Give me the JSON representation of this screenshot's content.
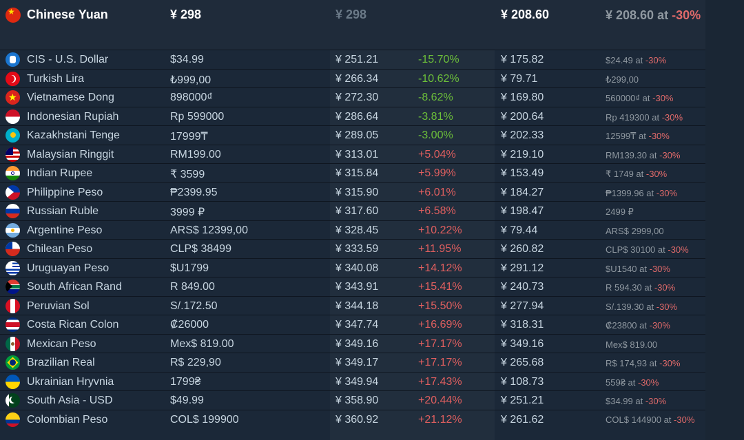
{
  "header": {
    "currency_name": "Chinese Yuan",
    "price": "¥ 298",
    "converted": "¥ 298",
    "sale_price": "¥ 208.60",
    "sale_note_prefix": "¥ 208.60 at",
    "sale_note_pct": "-30%",
    "flag_icon": "china-flag-icon"
  },
  "rows": [
    {
      "name": "CIS - U.S. Dollar",
      "price": "$34.99",
      "converted": "¥ 251.21",
      "diff": "-15.70%",
      "diff_sign": "neg",
      "sale": "¥ 175.82",
      "orig": "$24.49",
      "at": " at ",
      "pct": "-30%",
      "flag": "cis-flag-icon"
    },
    {
      "name": "Turkish Lira",
      "price": "₺999,00",
      "converted": "¥ 266.34",
      "diff": "-10.62%",
      "diff_sign": "neg",
      "sale": "¥ 79.71",
      "orig": "₺299,00",
      "at": "",
      "pct": "",
      "flag": "turkey-flag-icon"
    },
    {
      "name": "Vietnamese Dong",
      "price": "898000₫",
      "converted": "¥ 272.30",
      "diff": "-8.62%",
      "diff_sign": "neg",
      "sale": "¥ 169.80",
      "orig": "560000₫",
      "at": " at ",
      "pct": "-30%",
      "flag": "vietnam-flag-icon"
    },
    {
      "name": "Indonesian Rupiah",
      "price": "Rp 599000",
      "converted": "¥ 286.64",
      "diff": "-3.81%",
      "diff_sign": "neg",
      "sale": "¥ 200.64",
      "orig": "Rp 419300",
      "at": " at ",
      "pct": "-30%",
      "flag": "indonesia-flag-icon"
    },
    {
      "name": "Kazakhstani Tenge",
      "price": "17999₸",
      "converted": "¥ 289.05",
      "diff": "-3.00%",
      "diff_sign": "neg",
      "sale": "¥ 202.33",
      "orig": "12599₸",
      "at": " at ",
      "pct": "-30%",
      "flag": "kazakhstan-flag-icon"
    },
    {
      "name": "Malaysian Ringgit",
      "price": "RM199.00",
      "converted": "¥ 313.01",
      "diff": "+5.04%",
      "diff_sign": "pos",
      "sale": "¥ 219.10",
      "orig": "RM139.30",
      "at": " at ",
      "pct": "-30%",
      "flag": "malaysia-flag-icon"
    },
    {
      "name": "Indian Rupee",
      "price": "₹ 3599",
      "converted": "¥ 315.84",
      "diff": "+5.99%",
      "diff_sign": "pos",
      "sale": "¥ 153.49",
      "orig": "₹ 1749",
      "at": " at ",
      "pct": "-30%",
      "flag": "india-flag-icon"
    },
    {
      "name": "Philippine Peso",
      "price": "₱2399.95",
      "converted": "¥ 315.90",
      "diff": "+6.01%",
      "diff_sign": "pos",
      "sale": "¥ 184.27",
      "orig": "₱1399.96",
      "at": " at ",
      "pct": "-30%",
      "flag": "philippines-flag-icon"
    },
    {
      "name": "Russian Ruble",
      "price": "3999 ₽",
      "converted": "¥ 317.60",
      "diff": "+6.58%",
      "diff_sign": "pos",
      "sale": "¥ 198.47",
      "orig": "2499 ₽",
      "at": "",
      "pct": "",
      "flag": "russia-flag-icon"
    },
    {
      "name": "Argentine Peso",
      "price": "ARS$ 12399,00",
      "converted": "¥ 328.45",
      "diff": "+10.22%",
      "diff_sign": "pos",
      "sale": "¥ 79.44",
      "orig": "ARS$ 2999,00",
      "at": "",
      "pct": "",
      "flag": "argentina-flag-icon"
    },
    {
      "name": "Chilean Peso",
      "price": "CLP$ 38499",
      "converted": "¥ 333.59",
      "diff": "+11.95%",
      "diff_sign": "pos",
      "sale": "¥ 260.82",
      "orig": "CLP$ 30100",
      "at": " at ",
      "pct": "-30%",
      "flag": "chile-flag-icon"
    },
    {
      "name": "Uruguayan Peso",
      "price": "$U1799",
      "converted": "¥ 340.08",
      "diff": "+14.12%",
      "diff_sign": "pos",
      "sale": "¥ 291.12",
      "orig": "$U1540",
      "at": " at ",
      "pct": "-30%",
      "flag": "uruguay-flag-icon"
    },
    {
      "name": "South African Rand",
      "price": "R 849.00",
      "converted": "¥ 343.91",
      "diff": "+15.41%",
      "diff_sign": "pos",
      "sale": "¥ 240.73",
      "orig": "R 594.30",
      "at": " at ",
      "pct": "-30%",
      "flag": "south-africa-flag-icon"
    },
    {
      "name": "Peruvian Sol",
      "price": "S/.172.50",
      "converted": "¥ 344.18",
      "diff": "+15.50%",
      "diff_sign": "pos",
      "sale": "¥ 277.94",
      "orig": "S/.139.30",
      "at": " at ",
      "pct": "-30%",
      "flag": "peru-flag-icon"
    },
    {
      "name": "Costa Rican Colon",
      "price": "₡26000",
      "converted": "¥ 347.74",
      "diff": "+16.69%",
      "diff_sign": "pos",
      "sale": "¥ 318.31",
      "orig": "₡23800",
      "at": " at ",
      "pct": "-30%",
      "flag": "costa-rica-flag-icon"
    },
    {
      "name": "Mexican Peso",
      "price": "Mex$ 819.00",
      "converted": "¥ 349.16",
      "diff": "+17.17%",
      "diff_sign": "pos",
      "sale": "¥ 349.16",
      "orig": "Mex$ 819.00",
      "at": "",
      "pct": "",
      "flag": "mexico-flag-icon"
    },
    {
      "name": "Brazilian Real",
      "price": "R$ 229,90",
      "converted": "¥ 349.17",
      "diff": "+17.17%",
      "diff_sign": "pos",
      "sale": "¥ 265.68",
      "orig": "R$ 174,93",
      "at": " at ",
      "pct": "-30%",
      "flag": "brazil-flag-icon"
    },
    {
      "name": "Ukrainian Hryvnia",
      "price": "1799₴",
      "converted": "¥ 349.94",
      "diff": "+17.43%",
      "diff_sign": "pos",
      "sale": "¥ 108.73",
      "orig": "559₴",
      "at": " at ",
      "pct": "-30%",
      "flag": "ukraine-flag-icon"
    },
    {
      "name": "South Asia - USD",
      "price": "$49.99",
      "converted": "¥ 358.90",
      "diff": "+20.44%",
      "diff_sign": "pos",
      "sale": "¥ 251.21",
      "orig": "$34.99",
      "at": " at ",
      "pct": "-30%",
      "flag": "south-asia-flag-icon"
    },
    {
      "name": "Colombian Peso",
      "price": "COL$ 199900",
      "converted": "¥ 360.92",
      "diff": "+21.12%",
      "diff_sign": "pos",
      "sale": "¥ 261.62",
      "orig": "COL$ 144900",
      "at": " at ",
      "pct": "-30%",
      "flag": "colombia-flag-icon"
    }
  ],
  "colors": {
    "background": "#1b2838",
    "negative_diff": "#6cbf3a",
    "positive_diff": "#e05f5f",
    "discount": "#e06a6a"
  }
}
